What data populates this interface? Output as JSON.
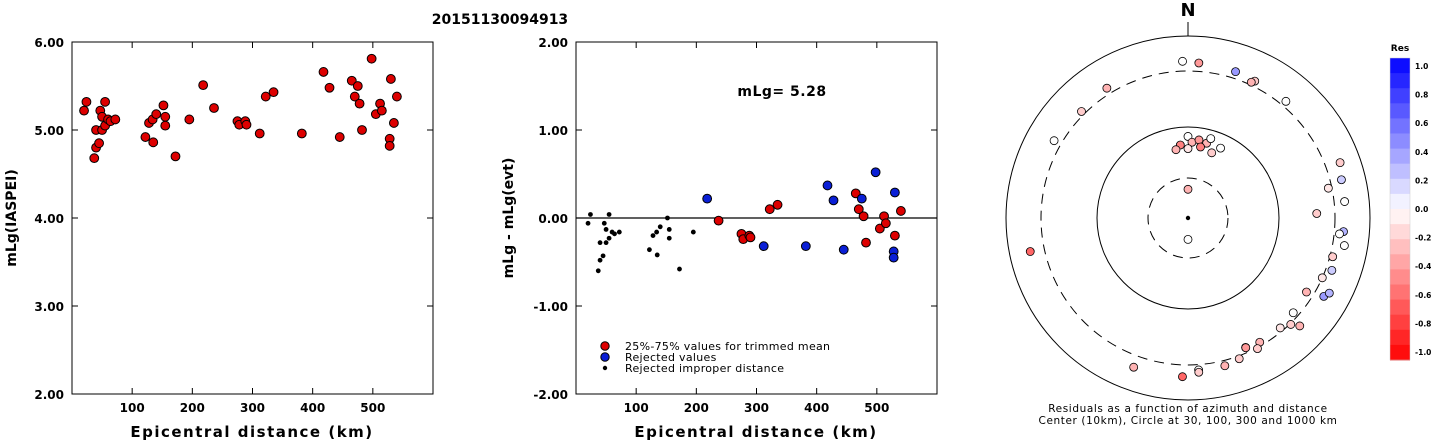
{
  "title": "20151130094913",
  "chart_data": [
    {
      "type": "scatter",
      "ylabel": "mLg(IASPEI)",
      "xlabel": "Epicentral distance (km)",
      "xlim": [
        0,
        600
      ],
      "ylim": [
        2.0,
        6.0
      ],
      "xticks": [
        100,
        200,
        300,
        400,
        500
      ],
      "yticks": [
        "2.00",
        "3.00",
        "4.00",
        "5.00",
        "6.00"
      ],
      "series": [
        {
          "marker": "red",
          "points": [
            [
              20,
              5.22
            ],
            [
              24,
              5.32
            ],
            [
              37,
              4.68
            ],
            [
              40,
              4.8
            ],
            [
              40,
              5.0
            ],
            [
              45,
              4.85
            ],
            [
              47,
              5.22
            ],
            [
              50,
              5.0
            ],
            [
              50,
              5.15
            ],
            [
              55,
              5.05
            ],
            [
              55,
              5.32
            ],
            [
              60,
              5.12
            ],
            [
              64,
              5.1
            ],
            [
              72,
              5.12
            ],
            [
              122,
              4.92
            ],
            [
              128,
              5.08
            ],
            [
              134,
              5.12
            ],
            [
              135,
              4.86
            ],
            [
              140,
              5.18
            ],
            [
              152,
              5.28
            ],
            [
              155,
              5.15
            ],
            [
              155,
              5.05
            ],
            [
              172,
              4.7
            ],
            [
              195,
              5.12
            ],
            [
              218,
              5.51
            ],
            [
              236,
              5.25
            ],
            [
              275,
              5.1
            ],
            [
              278,
              5.06
            ],
            [
              288,
              5.1
            ],
            [
              290,
              5.06
            ],
            [
              312,
              4.96
            ],
            [
              322,
              5.38
            ],
            [
              335,
              5.43
            ],
            [
              382,
              4.96
            ],
            [
              418,
              5.66
            ],
            [
              428,
              5.48
            ],
            [
              445,
              4.92
            ],
            [
              465,
              5.56
            ],
            [
              470,
              5.38
            ],
            [
              475,
              5.5
            ],
            [
              478,
              5.3
            ],
            [
              482,
              5.0
            ],
            [
              498,
              5.81
            ],
            [
              505,
              5.18
            ],
            [
              512,
              5.3
            ],
            [
              515,
              5.22
            ],
            [
              528,
              4.9
            ],
            [
              528,
              4.82
            ],
            [
              530,
              5.58
            ],
            [
              535,
              5.08
            ],
            [
              540,
              5.38
            ]
          ]
        }
      ]
    },
    {
      "type": "scatter",
      "ylabel": "mLg - mLg(evt)",
      "xlabel": "Epicentral distance (km)",
      "xlim": [
        0,
        600
      ],
      "ylim": [
        -2.0,
        2.0
      ],
      "xticks": [
        100,
        200,
        300,
        400,
        500
      ],
      "yticks": [
        "-2.00",
        "-1.00",
        "0.00",
        "1.00",
        "2.00"
      ],
      "annotation": "mLg= 5.28",
      "legend": [
        {
          "marker": "red",
          "label": "25%-75% values for trimmed mean"
        },
        {
          "marker": "blue",
          "label": "Rejected values"
        },
        {
          "marker": "black",
          "label": "Rejected improper distance"
        }
      ],
      "series": [
        {
          "marker": "red",
          "points": [
            [
              237,
              -0.03
            ],
            [
              275,
              -0.18
            ],
            [
              278,
              -0.24
            ],
            [
              288,
              -0.2
            ],
            [
              290,
              -0.22
            ],
            [
              322,
              0.1
            ],
            [
              335,
              0.15
            ],
            [
              465,
              0.28
            ],
            [
              470,
              0.1
            ],
            [
              478,
              0.02
            ],
            [
              482,
              -0.28
            ],
            [
              505,
              -0.12
            ],
            [
              512,
              0.02
            ],
            [
              515,
              -0.06
            ],
            [
              530,
              -0.2
            ],
            [
              540,
              0.08
            ]
          ]
        },
        {
          "marker": "blue",
          "points": [
            [
              218,
              0.22
            ],
            [
              312,
              -0.32
            ],
            [
              382,
              -0.32
            ],
            [
              418,
              0.37
            ],
            [
              428,
              0.2
            ],
            [
              445,
              -0.36
            ],
            [
              475,
              0.22
            ],
            [
              498,
              0.52
            ],
            [
              528,
              -0.38
            ],
            [
              528,
              -0.45
            ],
            [
              530,
              0.29
            ]
          ]
        },
        {
          "marker": "black",
          "points": [
            [
              20,
              -0.06
            ],
            [
              24,
              0.04
            ],
            [
              37,
              -0.6
            ],
            [
              40,
              -0.48
            ],
            [
              40,
              -0.28
            ],
            [
              45,
              -0.43
            ],
            [
              47,
              -0.06
            ],
            [
              50,
              -0.28
            ],
            [
              50,
              -0.13
            ],
            [
              55,
              -0.23
            ],
            [
              55,
              0.04
            ],
            [
              60,
              -0.16
            ],
            [
              64,
              -0.18
            ],
            [
              72,
              -0.16
            ],
            [
              122,
              -0.36
            ],
            [
              128,
              -0.2
            ],
            [
              134,
              -0.16
            ],
            [
              135,
              -0.42
            ],
            [
              140,
              -0.1
            ],
            [
              152,
              0.0
            ],
            [
              155,
              -0.13
            ],
            [
              155,
              -0.23
            ],
            [
              172,
              -0.58
            ],
            [
              195,
              -0.16
            ]
          ]
        }
      ]
    },
    {
      "type": "scatter",
      "subtype": "polar",
      "north_label": "N",
      "caption_line1": "Residuals as a function of azimuth and distance",
      "caption_line2": "Center (10km), Circle at 30, 100, 300 and 1000 km",
      "colorbar_title": "Res",
      "colorbar_range": [
        -1.0,
        1.0
      ],
      "colorbar_ticks": [
        "1.0",
        "0.8",
        "0.6",
        "0.4",
        "0.2",
        "0.0",
        "-0.2",
        "-0.4",
        "-0.6",
        "-0.8",
        "-1.0"
      ],
      "points": [
        {
          "az": 0,
          "dist": 22,
          "res": -0.3
        },
        {
          "az": 0,
          "dist": 80,
          "res": 0.0
        },
        {
          "az": 3,
          "dist": 70,
          "res": -0.3
        },
        {
          "az": 0,
          "dist": 60,
          "res": -0.1
        },
        {
          "az": 8,
          "dist": 75,
          "res": -0.4
        },
        {
          "az": 14,
          "dist": 72,
          "res": -0.3
        },
        {
          "az": 16,
          "dist": 82,
          "res": 0.0
        },
        {
          "az": 10,
          "dist": 64,
          "res": -0.5
        },
        {
          "az": 20,
          "dist": 60,
          "res": -0.2
        },
        {
          "az": 25,
          "dist": 72,
          "res": 0.0
        },
        {
          "az": 354,
          "dist": 66,
          "res": -0.5
        },
        {
          "az": 350,
          "dist": 60,
          "res": -0.3
        },
        {
          "az": 180,
          "dist": 18,
          "res": 0.0
        },
        {
          "az": 358,
          "dist": 420,
          "res": 0.0
        },
        {
          "az": 4,
          "dist": 400,
          "res": -0.4
        },
        {
          "az": 18,
          "dist": 380,
          "res": 0.4
        },
        {
          "az": 26,
          "dist": 360,
          "res": -0.2
        },
        {
          "az": 25,
          "dist": 330,
          "res": -0.3
        },
        {
          "az": 40,
          "dist": 360,
          "res": 0.0
        },
        {
          "az": 328,
          "dist": 370,
          "res": -0.3
        },
        {
          "az": 315,
          "dist": 340,
          "res": -0.2
        },
        {
          "az": 300,
          "dist": 390,
          "res": 0.0
        },
        {
          "az": 70,
          "dist": 500,
          "res": -0.2
        },
        {
          "az": 76,
          "dist": 440,
          "res": 0.2
        },
        {
          "az": 84,
          "dist": 430,
          "res": 0.0
        },
        {
          "az": 95,
          "dist": 410,
          "res": 0.3
        },
        {
          "az": 100,
          "dist": 450,
          "res": 0.0
        },
        {
          "az": 96,
          "dist": 360,
          "res": 0.0
        },
        {
          "az": 105,
          "dist": 330,
          "res": -0.2
        },
        {
          "az": 78,
          "dist": 280,
          "res": -0.1
        },
        {
          "az": 88,
          "dist": 210,
          "res": -0.2
        },
        {
          "az": 110,
          "dist": 370,
          "res": 0.2
        },
        {
          "az": 120,
          "dist": 420,
          "res": 0.4
        },
        {
          "az": 118,
          "dist": 470,
          "res": 0.3
        },
        {
          "az": 114,
          "dist": 300,
          "res": -0.1
        },
        {
          "az": 122,
          "dist": 260,
          "res": -0.3
        },
        {
          "az": 136,
          "dist": 310,
          "res": -0.2
        },
        {
          "az": 140,
          "dist": 280,
          "res": -0.1
        },
        {
          "az": 132,
          "dist": 270,
          "res": 0.0
        },
        {
          "az": 150,
          "dist": 280,
          "res": -0.3
        },
        {
          "az": 152,
          "dist": 310,
          "res": -0.2
        },
        {
          "az": 156,
          "dist": 270,
          "res": -0.5
        },
        {
          "az": 156,
          "dist": 272,
          "res": -0.4
        },
        {
          "az": 160,
          "dist": 330,
          "res": -0.2
        },
        {
          "az": 166,
          "dist": 360,
          "res": -0.3
        },
        {
          "az": 176,
          "dist": 360,
          "res": 0.0
        },
        {
          "az": 176,
          "dist": 390,
          "res": -0.2
        },
        {
          "az": 182,
          "dist": 450,
          "res": -0.6
        },
        {
          "az": 200,
          "dist": 450,
          "res": -0.3
        },
        {
          "az": 258,
          "dist": 490,
          "res": -0.6
        },
        {
          "az": 134,
          "dist": 400,
          "res": -0.3
        }
      ]
    }
  ]
}
